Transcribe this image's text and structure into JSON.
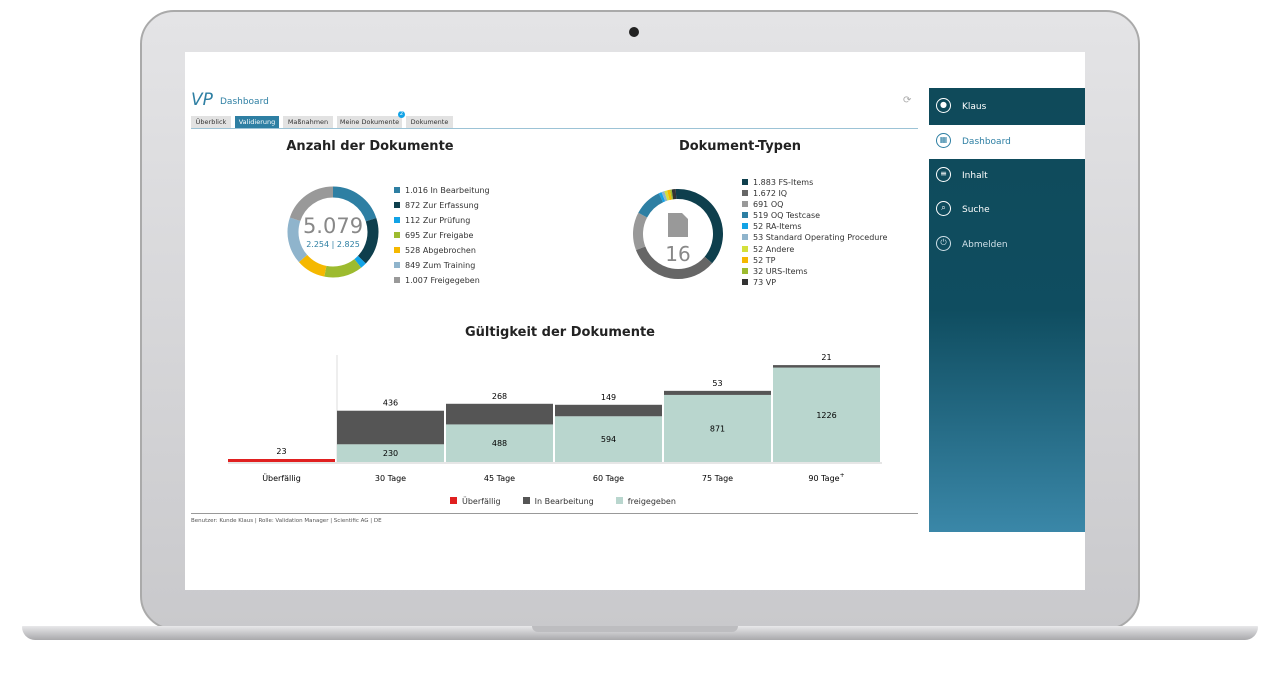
{
  "header": {
    "logo": "VP",
    "title": "Dashboard"
  },
  "tabs": [
    {
      "label": "Überblick"
    },
    {
      "label": "Validierung",
      "active": true
    },
    {
      "label": "Maßnahmen"
    },
    {
      "label": "Meine Dokumente",
      "badge": "2"
    },
    {
      "label": "Dokumente"
    }
  ],
  "sidebar": {
    "items": [
      {
        "label": "Klaus",
        "icon": "user-icon"
      },
      {
        "label": "Dashboard",
        "icon": "grid-icon",
        "active": true
      },
      {
        "label": "Inhalt",
        "icon": "database-icon"
      },
      {
        "label": "Suche",
        "icon": "search-icon"
      },
      {
        "label": "Abmelden",
        "icon": "power-icon"
      }
    ]
  },
  "footer": {
    "text": "Benutzer: Kunde Klaus | Rolle: Validation Manager | Scientific AG | DE"
  },
  "chart_data": [
    {
      "type": "pie",
      "title": "Anzahl der Dokumente",
      "center_total": "5.079",
      "center_sub": [
        "2.254",
        "2.825"
      ],
      "labels": [
        "1.016 In Bearbeitung",
        "872 Zur Erfassung",
        "112 Zur Prüfung",
        "695 Zur Freigabe",
        "528 Abgebrochen",
        "849 Zum Training",
        "1.007 Freigegeben"
      ],
      "values": [
        1016,
        872,
        112,
        695,
        528,
        849,
        1007
      ],
      "colors": [
        "#2e7fa3",
        "#0e3f4d",
        "#12a3e6",
        "#9dbb2f",
        "#f5b800",
        "#8fb4cc",
        "#999999"
      ]
    },
    {
      "type": "pie",
      "title": "Dokument-Typen",
      "center_total": "16",
      "icon": "document-icon",
      "labels": [
        "1.883 FS-Items",
        "1.672 IQ",
        "691 OQ",
        "519 OQ Testcase",
        "52 RA-Items",
        "53 Standard Operating Procedure",
        "52 Andere",
        "52 TP",
        "32 URS-Items",
        "73 VP"
      ],
      "values": [
        1883,
        1672,
        691,
        519,
        52,
        53,
        52,
        52,
        32,
        73
      ],
      "colors": [
        "#0e3f4d",
        "#666666",
        "#999999",
        "#2e7fa3",
        "#12a3e6",
        "#8fb4cc",
        "#d4e03c",
        "#f5b800",
        "#9dbb2f",
        "#333333"
      ]
    },
    {
      "type": "bar",
      "stacked": true,
      "title": "Gültigkeit der Dokumente",
      "categories": [
        "Überfällig",
        "30 Tage",
        "45 Tage",
        "60 Tage",
        "75 Tage",
        "90 Tage+"
      ],
      "series": [
        {
          "name": "Überfällig",
          "color": "#e02020",
          "values": [
            23,
            0,
            0,
            0,
            0,
            0
          ]
        },
        {
          "name": "freigegeben",
          "color": "#b9d6ce",
          "values": [
            0,
            230,
            488,
            594,
            871,
            1226
          ]
        },
        {
          "name": "In Bearbeitung",
          "color": "#555555",
          "values": [
            0,
            436,
            268,
            149,
            53,
            21
          ]
        }
      ],
      "legend_order": [
        "Überfällig",
        "In Bearbeitung",
        "freigegeben"
      ]
    }
  ]
}
